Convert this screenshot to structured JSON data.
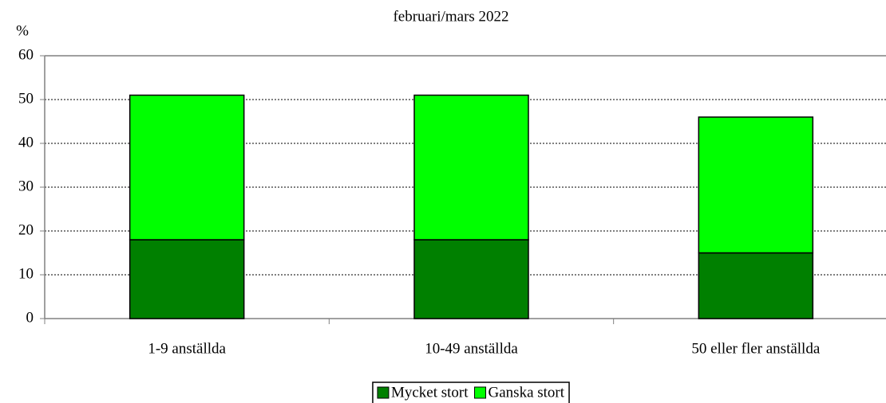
{
  "chart_data": {
    "type": "stacked_bar",
    "subtitle": "februari/mars 2022",
    "y_label": "%",
    "categories": [
      "1-9 anställda",
      "10-49 anställda",
      "50 eller fler anställda"
    ],
    "series": [
      {
        "name": "Mycket stort",
        "color": "#008000",
        "values": [
          18,
          18,
          15
        ]
      },
      {
        "name": "Ganska stort",
        "color": "#00ff00",
        "values": [
          33,
          33,
          31
        ]
      }
    ],
    "ylim": [
      0,
      60
    ],
    "yticks": [
      0,
      10,
      20,
      30,
      40,
      50,
      60
    ],
    "grid": true,
    "legend": "bottom"
  }
}
